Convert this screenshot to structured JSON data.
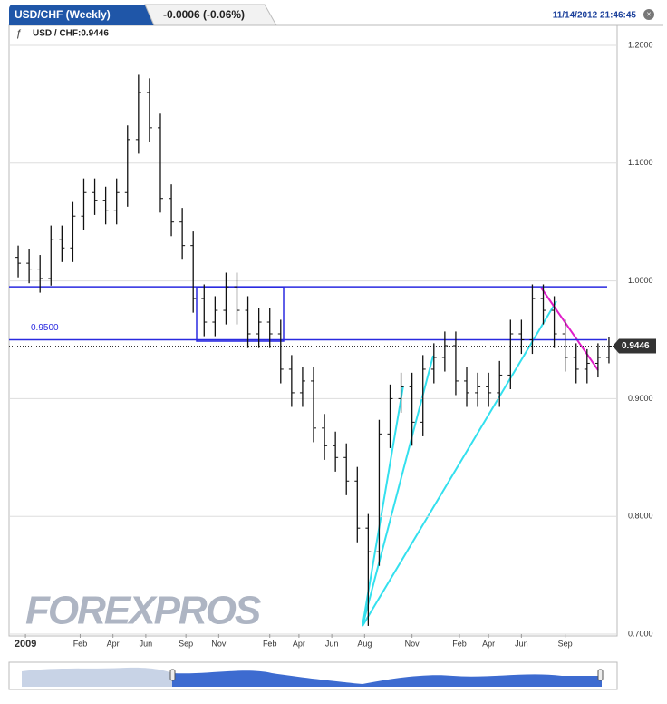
{
  "chart_data": {
    "type": "ohlc",
    "title": "USD/CHF (Weekly)",
    "change": "-0.0006 (-0.06%)",
    "timestamp": "11/14/2012 21:46:45",
    "legend_label": "USD / CHF:0.9446",
    "watermark": "FOREXPROS",
    "x": [
      0,
      3,
      6,
      9,
      12,
      15,
      18,
      21,
      24,
      27,
      30,
      33,
      36,
      39,
      42,
      45,
      48,
      51,
      54,
      57,
      60,
      63,
      66,
      69,
      72,
      75,
      78,
      81,
      84,
      87,
      90,
      93,
      96,
      99,
      102,
      105,
      108,
      111,
      114,
      117,
      120,
      123,
      126,
      129,
      132,
      135,
      138,
      141,
      144,
      147,
      150,
      153,
      156,
      159,
      162
    ],
    "open": [
      1.02,
      1.015,
      1.01,
      1.002,
      1.035,
      1.028,
      1.055,
      1.075,
      1.068,
      1.06,
      1.075,
      1.12,
      1.16,
      1.13,
      1.07,
      1.05,
      1.03,
      0.985,
      0.965,
      0.975,
      0.995,
      0.975,
      0.955,
      0.965,
      0.955,
      0.925,
      0.905,
      0.915,
      0.875,
      0.86,
      0.85,
      0.83,
      0.79,
      0.77,
      0.87,
      0.9,
      0.91,
      0.88,
      0.925,
      0.935,
      0.945,
      0.915,
      0.905,
      0.91,
      0.905,
      0.92,
      0.955,
      0.95,
      0.985,
      0.975,
      0.955,
      0.935,
      0.925,
      0.93,
      0.935
    ],
    "high": [
      1.03,
      1.027,
      1.022,
      1.047,
      1.047,
      1.067,
      1.087,
      1.087,
      1.08,
      1.087,
      1.132,
      1.175,
      1.172,
      1.142,
      1.082,
      1.062,
      1.042,
      0.997,
      0.987,
      1.007,
      1.007,
      0.987,
      0.977,
      0.977,
      0.967,
      0.937,
      0.927,
      0.927,
      0.887,
      0.872,
      0.862,
      0.842,
      0.802,
      0.882,
      0.912,
      0.922,
      0.922,
      0.937,
      0.947,
      0.957,
      0.957,
      0.927,
      0.922,
      0.922,
      0.932,
      0.967,
      0.967,
      0.997,
      0.997,
      0.987,
      0.967,
      0.947,
      0.942,
      0.947,
      0.952
    ],
    "low": [
      1.003,
      0.998,
      0.99,
      0.996,
      1.016,
      1.016,
      1.043,
      1.056,
      1.048,
      1.048,
      1.063,
      1.108,
      1.118,
      1.058,
      1.038,
      1.018,
      0.973,
      0.953,
      0.953,
      0.963,
      0.963,
      0.943,
      0.943,
      0.943,
      0.913,
      0.893,
      0.893,
      0.863,
      0.848,
      0.838,
      0.818,
      0.778,
      0.707,
      0.758,
      0.858,
      0.888,
      0.86,
      0.868,
      0.913,
      0.923,
      0.903,
      0.893,
      0.893,
      0.893,
      0.893,
      0.908,
      0.938,
      0.938,
      0.963,
      0.943,
      0.923,
      0.913,
      0.913,
      0.918,
      0.93
    ],
    "close": [
      1.015,
      1.01,
      1.002,
      1.035,
      1.028,
      1.055,
      1.075,
      1.068,
      1.06,
      1.075,
      1.12,
      1.16,
      1.13,
      1.07,
      1.05,
      1.03,
      0.985,
      0.965,
      0.975,
      0.995,
      0.975,
      0.955,
      0.965,
      0.955,
      0.925,
      0.905,
      0.915,
      0.875,
      0.86,
      0.85,
      0.83,
      0.79,
      0.77,
      0.87,
      0.9,
      0.91,
      0.88,
      0.925,
      0.935,
      0.945,
      0.915,
      0.905,
      0.91,
      0.905,
      0.92,
      0.955,
      0.95,
      0.985,
      0.975,
      0.955,
      0.935,
      0.925,
      0.93,
      0.935,
      0.9446
    ],
    "color": "#111111",
    "xlim": [
      -2,
      164
    ],
    "xticks": [
      {
        "value": 2,
        "label": "2009"
      },
      {
        "value": 17,
        "label": "Feb"
      },
      {
        "value": 26,
        "label": "Apr"
      },
      {
        "value": 35,
        "label": "Jun"
      },
      {
        "value": 46,
        "label": "Sep"
      },
      {
        "value": 55,
        "label": "Nov"
      },
      {
        "value": 69,
        "label": "Feb"
      },
      {
        "value": 77,
        "label": "Apr"
      },
      {
        "value": 86,
        "label": "Jun"
      },
      {
        "value": 95,
        "label": "Aug"
      },
      {
        "value": 108,
        "label": "Nov"
      },
      {
        "value": 121,
        "label": "Feb"
      },
      {
        "value": 129,
        "label": "Apr"
      },
      {
        "value": 138,
        "label": "Jun"
      },
      {
        "value": 150,
        "label": "Sep"
      }
    ],
    "ylim": [
      0.7,
      1.2
    ],
    "yticks": [
      {
        "value": 0.7,
        "label": "0.7000"
      },
      {
        "value": 0.8,
        "label": "0.8000"
      },
      {
        "value": 0.9,
        "label": "0.9000"
      },
      {
        "value": 1.0,
        "label": "1.0000"
      },
      {
        "value": 1.1,
        "label": "1.1000"
      },
      {
        "value": 1.2,
        "label": "1.2000"
      }
    ],
    "grid": true,
    "level_lines": [
      {
        "value": 0.95,
        "label": "0.9500"
      },
      {
        "value": 0.995
      }
    ],
    "last_price": {
      "value": 0.9446,
      "label": "0.9446"
    }
  }
}
